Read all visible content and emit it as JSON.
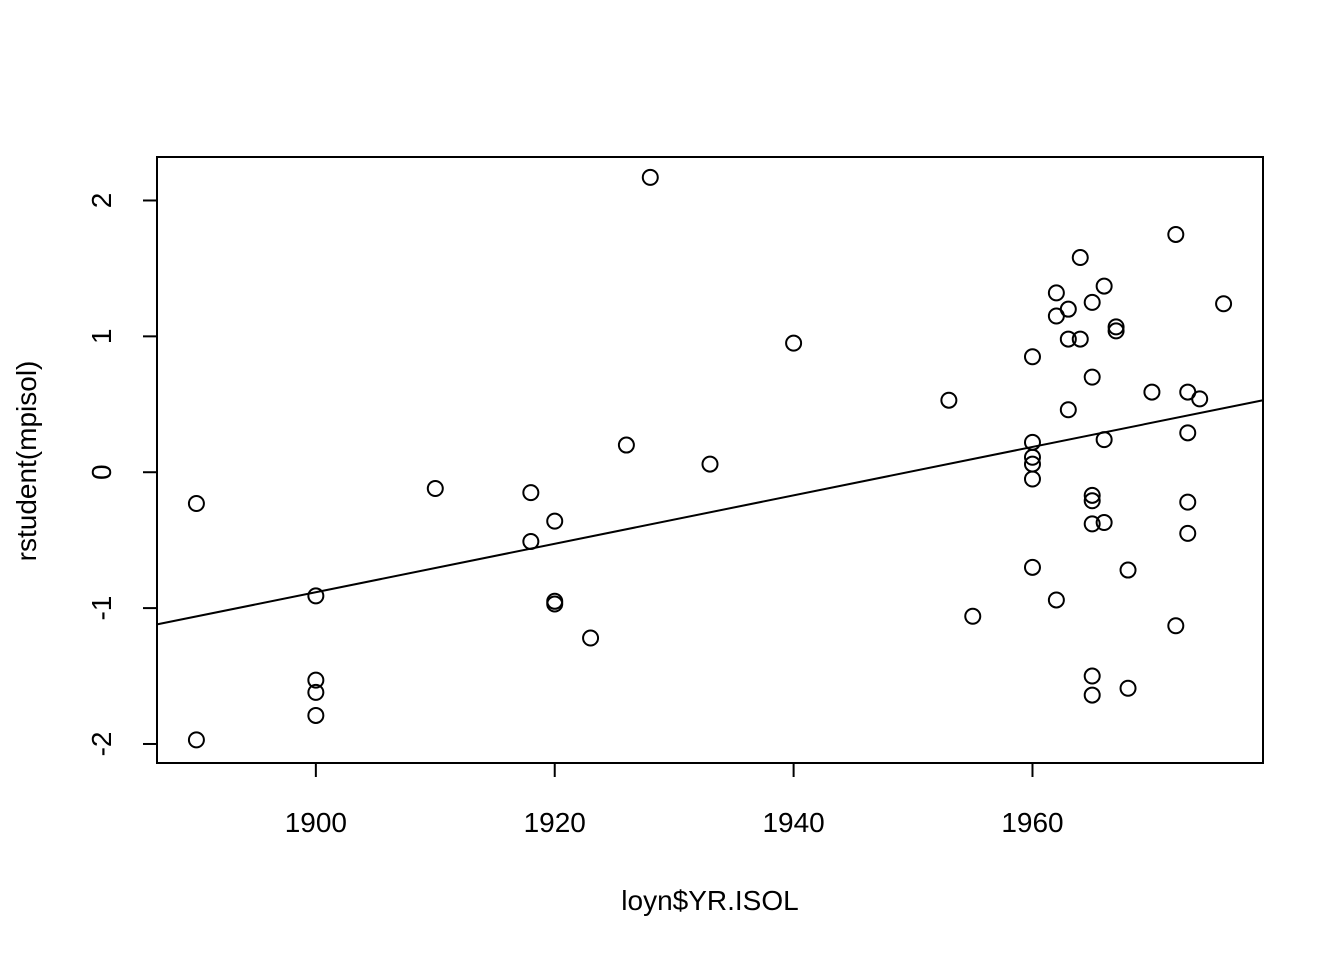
{
  "chart_data": {
    "type": "scatter",
    "title": "",
    "xlabel": "loyn$YR.ISOL",
    "ylabel": "rstudent(mpisol)",
    "xlim": [
      1886.7,
      1979.3
    ],
    "ylim": [
      -2.14,
      2.32
    ],
    "x_ticks": [
      1900,
      1920,
      1940,
      1960
    ],
    "x_tick_labels": [
      "1900",
      "1920",
      "1940",
      "1960"
    ],
    "y_ticks": [
      -2,
      -1,
      0,
      1,
      2
    ],
    "y_tick_labels": [
      "-2",
      "-1",
      "0",
      "1",
      "2"
    ],
    "grid": false,
    "marker": "open-circle",
    "points": [
      {
        "x": 1890,
        "y": -0.23
      },
      {
        "x": 1890,
        "y": -1.97
      },
      {
        "x": 1900,
        "y": -0.91
      },
      {
        "x": 1900,
        "y": -1.53
      },
      {
        "x": 1900,
        "y": -1.62
      },
      {
        "x": 1900,
        "y": -1.79
      },
      {
        "x": 1910,
        "y": -0.12
      },
      {
        "x": 1918,
        "y": -0.15
      },
      {
        "x": 1918,
        "y": -0.51
      },
      {
        "x": 1920,
        "y": -0.36
      },
      {
        "x": 1920,
        "y": -0.95
      },
      {
        "x": 1920,
        "y": -0.97
      },
      {
        "x": 1923,
        "y": -1.22
      },
      {
        "x": 1926,
        "y": 0.2
      },
      {
        "x": 1928,
        "y": 2.17
      },
      {
        "x": 1933,
        "y": 0.06
      },
      {
        "x": 1940,
        "y": 0.95
      },
      {
        "x": 1953,
        "y": 0.53
      },
      {
        "x": 1955,
        "y": -1.06
      },
      {
        "x": 1960,
        "y": 0.85
      },
      {
        "x": 1960,
        "y": 0.22
      },
      {
        "x": 1960,
        "y": 0.11
      },
      {
        "x": 1960,
        "y": 0.06
      },
      {
        "x": 1960,
        "y": -0.05
      },
      {
        "x": 1960,
        "y": -0.7
      },
      {
        "x": 1962,
        "y": 1.32
      },
      {
        "x": 1962,
        "y": 1.15
      },
      {
        "x": 1962,
        "y": -0.94
      },
      {
        "x": 1963,
        "y": 1.2
      },
      {
        "x": 1963,
        "y": 0.98
      },
      {
        "x": 1963,
        "y": 0.46
      },
      {
        "x": 1964,
        "y": 1.58
      },
      {
        "x": 1964,
        "y": 0.98
      },
      {
        "x": 1965,
        "y": 1.25
      },
      {
        "x": 1965,
        "y": 0.7
      },
      {
        "x": 1965,
        "y": -0.17
      },
      {
        "x": 1965,
        "y": -0.21
      },
      {
        "x": 1965,
        "y": -0.38
      },
      {
        "x": 1965,
        "y": -1.5
      },
      {
        "x": 1965,
        "y": -1.64
      },
      {
        "x": 1966,
        "y": 1.37
      },
      {
        "x": 1966,
        "y": 0.24
      },
      {
        "x": 1966,
        "y": -0.37
      },
      {
        "x": 1967,
        "y": 1.07
      },
      {
        "x": 1967,
        "y": 1.04
      },
      {
        "x": 1968,
        "y": -0.72
      },
      {
        "x": 1968,
        "y": -1.59
      },
      {
        "x": 1970,
        "y": 0.59
      },
      {
        "x": 1972,
        "y": 1.75
      },
      {
        "x": 1972,
        "y": -1.13
      },
      {
        "x": 1973,
        "y": 0.59
      },
      {
        "x": 1973,
        "y": 0.29
      },
      {
        "x": 1973,
        "y": -0.22
      },
      {
        "x": 1973,
        "y": -0.45
      },
      {
        "x": 1974,
        "y": 0.54
      },
      {
        "x": 1976,
        "y": 1.24
      }
    ],
    "fit_line": {
      "x": [
        1886.7,
        1979.3
      ],
      "y": [
        -1.12,
        0.53
      ]
    }
  }
}
